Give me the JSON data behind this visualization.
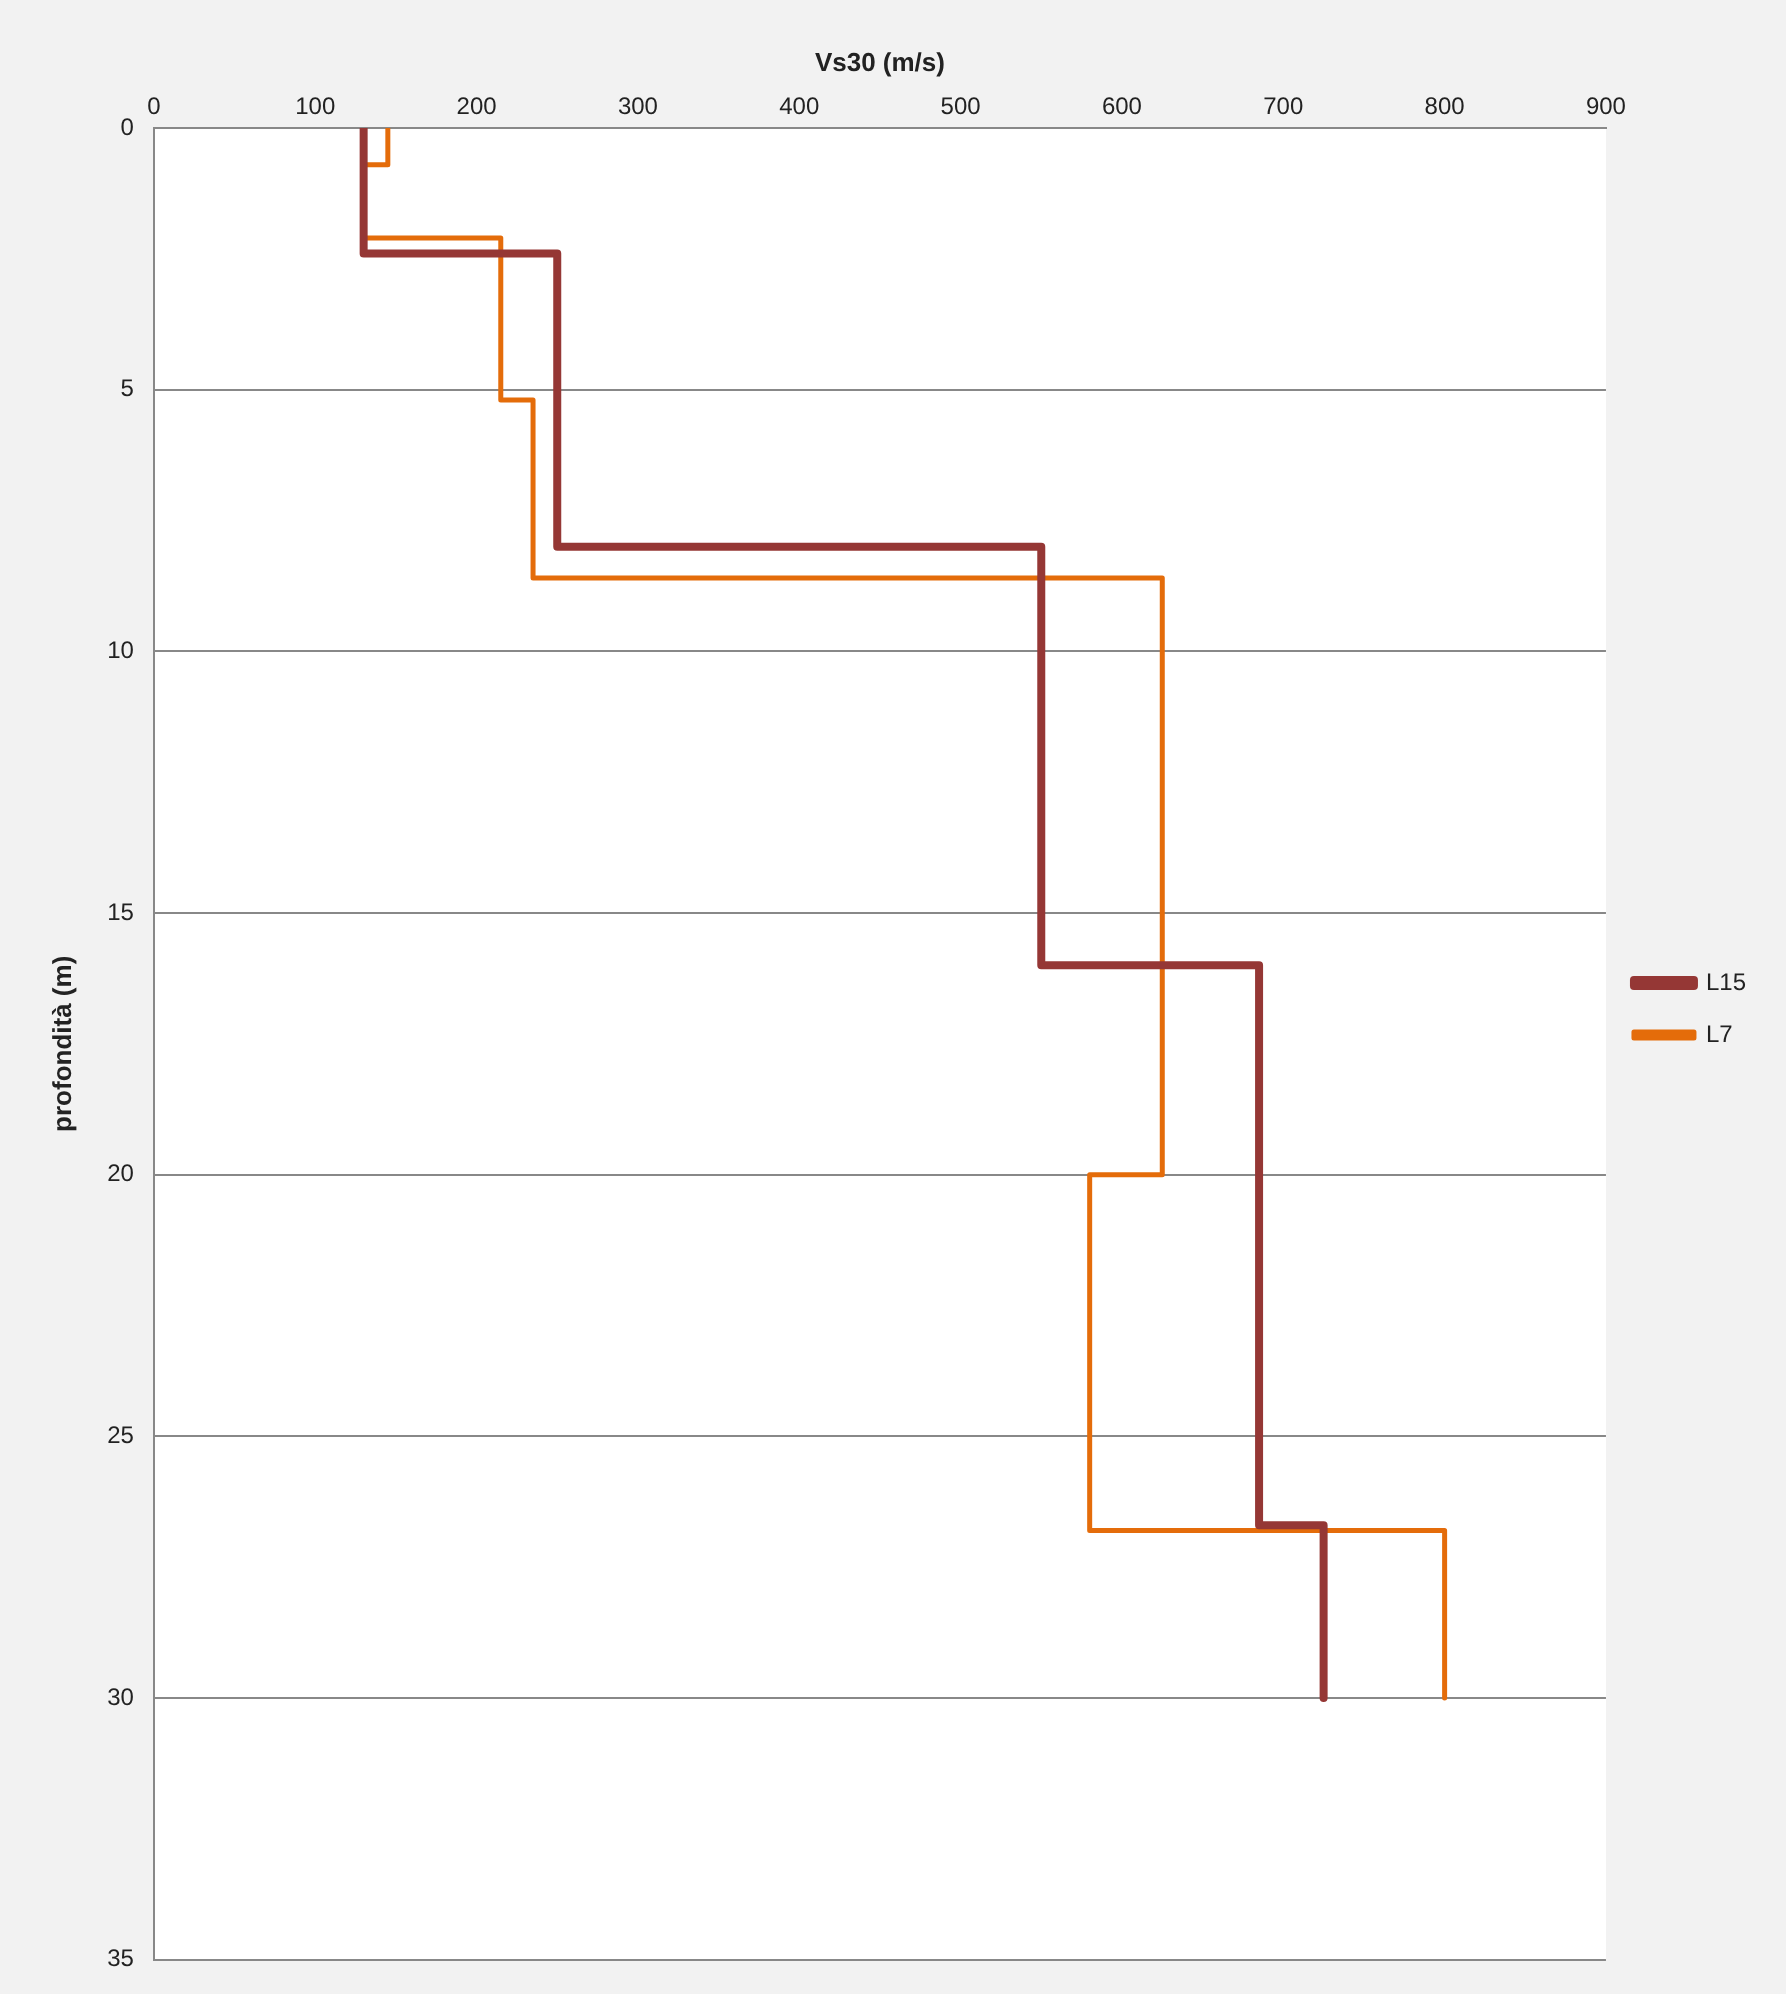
{
  "chart_data": {
    "type": "line",
    "xlabel": "Vs30 (m/s)",
    "ylabel": "profondità (m)",
    "xlim": [
      0,
      900
    ],
    "xticks": [
      0,
      100,
      200,
      300,
      400,
      500,
      600,
      700,
      800,
      900
    ],
    "ylim": [
      35,
      0
    ],
    "yticks": [
      0,
      5,
      10,
      15,
      20,
      25,
      30,
      35
    ],
    "grid": "y",
    "legend": "right",
    "marker": "none",
    "line_style": "solid",
    "series": [
      {
        "name": "L15",
        "color": "#953735",
        "x": [
          130,
          130,
          250,
          250,
          550,
          550,
          685,
          685,
          725,
          725
        ],
        "values": [
          0,
          2.4,
          2.4,
          8,
          8,
          16,
          16,
          26.7,
          26.7,
          30
        ]
      },
      {
        "name": "L7",
        "color": "#e46c0a",
        "x": [
          145,
          145,
          130,
          130,
          215,
          215,
          235,
          235,
          625,
          625,
          580,
          580,
          800,
          800
        ],
        "values": [
          0,
          0.7,
          0.7,
          2.1,
          2.1,
          5.2,
          5.2,
          8.6,
          8.6,
          20,
          20,
          26.8,
          26.8,
          30
        ]
      }
    ]
  }
}
